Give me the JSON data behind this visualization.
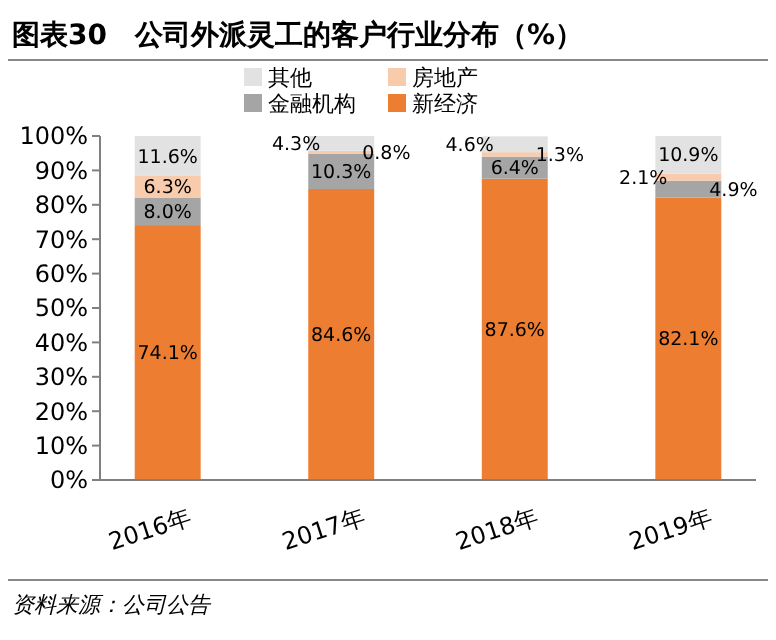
{
  "chart_data": {
    "type": "bar",
    "stacked": true,
    "title": "图表30　公司外派灵工的客户行业分布（%）",
    "categories": [
      "2016年",
      "2017年",
      "2018年",
      "2019年"
    ],
    "series": [
      {
        "name": "新经济",
        "color": "#ed7d31",
        "values": [
          74.1,
          84.6,
          87.6,
          82.1
        ],
        "value_labels": [
          "74.1%",
          "84.6%",
          "87.6%",
          "82.1%"
        ]
      },
      {
        "name": "金融机构",
        "color": "#a5a5a5",
        "values": [
          8.0,
          10.3,
          6.4,
          4.9
        ],
        "value_labels": [
          "8.0%",
          "10.3%",
          "6.4%",
          "4.9%"
        ]
      },
      {
        "name": "房地产",
        "color": "#f8cbad",
        "values": [
          6.3,
          0.8,
          1.3,
          2.1
        ],
        "value_labels": [
          "6.3%",
          "0.8%",
          "1.3%",
          "2.1%"
        ]
      },
      {
        "name": "其他",
        "color": "#e2e2e2",
        "values": [
          11.6,
          4.3,
          4.6,
          10.9
        ],
        "value_labels": [
          "11.6%",
          "4.3%",
          "4.6%",
          "10.9%"
        ]
      }
    ],
    "ylim": [
      0,
      100
    ],
    "yticks": [
      {
        "value": 0,
        "label": "0%"
      },
      {
        "value": 10,
        "label": "10%"
      },
      {
        "value": 20,
        "label": "20%"
      },
      {
        "value": 30,
        "label": "30%"
      },
      {
        "value": 40,
        "label": "40%"
      },
      {
        "value": 50,
        "label": "50%"
      },
      {
        "value": 60,
        "label": "60%"
      },
      {
        "value": 70,
        "label": "70%"
      },
      {
        "value": 80,
        "label": "80%"
      },
      {
        "value": 90,
        "label": "90%"
      },
      {
        "value": 100,
        "label": "100%"
      }
    ],
    "legend": "top",
    "grid": false,
    "annotations": [
      "资料来源：公司公告"
    ]
  }
}
